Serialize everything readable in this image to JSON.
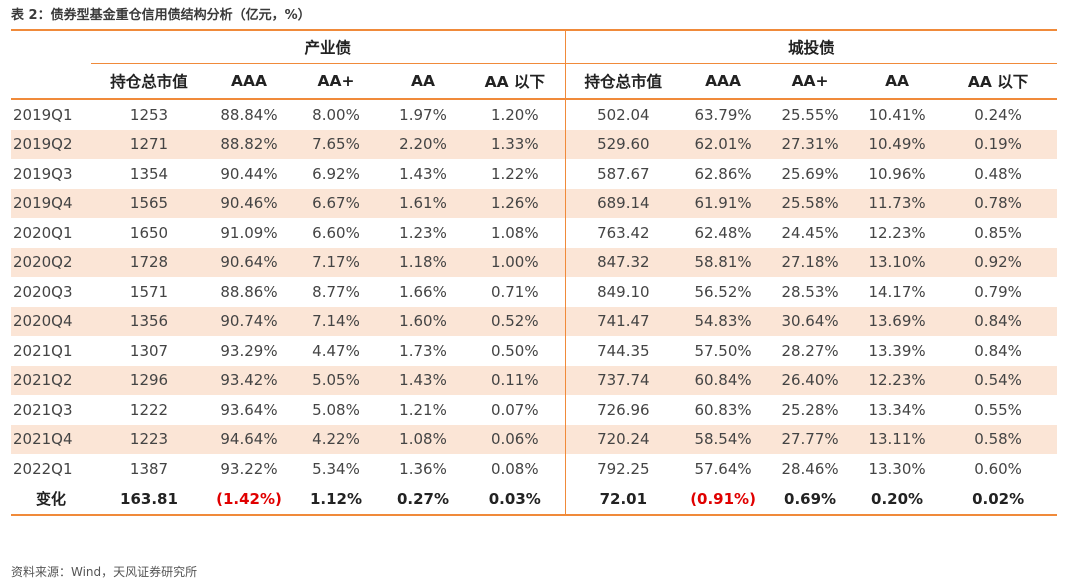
{
  "title": "表 2：债券型基金重仓信用债结构分析（亿元，%）",
  "groups": [
    "产业债",
    "城投债"
  ],
  "col_headers": [
    "持仓总市值",
    "AAA",
    "AA+",
    "AA",
    "AA 以下",
    "持仓总市值",
    "AAA",
    "AA+",
    "AA",
    "AA 以下"
  ],
  "rows": [
    {
      "label": "2019Q1",
      "vals": [
        "1253",
        "88.84%",
        "8.00%",
        "1.97%",
        "1.20%",
        "502.04",
        "63.79%",
        "25.55%",
        "10.41%",
        "0.24%"
      ]
    },
    {
      "label": "2019Q2",
      "vals": [
        "1271",
        "88.82%",
        "7.65%",
        "2.20%",
        "1.33%",
        "529.60",
        "62.01%",
        "27.31%",
        "10.49%",
        "0.19%"
      ]
    },
    {
      "label": "2019Q3",
      "vals": [
        "1354",
        "90.44%",
        "6.92%",
        "1.43%",
        "1.22%",
        "587.67",
        "62.86%",
        "25.69%",
        "10.96%",
        "0.48%"
      ]
    },
    {
      "label": "2019Q4",
      "vals": [
        "1565",
        "90.46%",
        "6.67%",
        "1.61%",
        "1.26%",
        "689.14",
        "61.91%",
        "25.58%",
        "11.73%",
        "0.78%"
      ]
    },
    {
      "label": "2020Q1",
      "vals": [
        "1650",
        "91.09%",
        "6.60%",
        "1.23%",
        "1.08%",
        "763.42",
        "62.48%",
        "24.45%",
        "12.23%",
        "0.85%"
      ]
    },
    {
      "label": "2020Q2",
      "vals": [
        "1728",
        "90.64%",
        "7.17%",
        "1.18%",
        "1.00%",
        "847.32",
        "58.81%",
        "27.18%",
        "13.10%",
        "0.92%"
      ]
    },
    {
      "label": "2020Q3",
      "vals": [
        "1571",
        "88.86%",
        "8.77%",
        "1.66%",
        "0.71%",
        "849.10",
        "56.52%",
        "28.53%",
        "14.17%",
        "0.79%"
      ]
    },
    {
      "label": "2020Q4",
      "vals": [
        "1356",
        "90.74%",
        "7.14%",
        "1.60%",
        "0.52%",
        "741.47",
        "54.83%",
        "30.64%",
        "13.69%",
        "0.84%"
      ]
    },
    {
      "label": "2021Q1",
      "vals": [
        "1307",
        "93.29%",
        "4.47%",
        "1.73%",
        "0.50%",
        "744.35",
        "57.50%",
        "28.27%",
        "13.39%",
        "0.84%"
      ]
    },
    {
      "label": "2021Q2",
      "vals": [
        "1296",
        "93.42%",
        "5.05%",
        "1.43%",
        "0.11%",
        "737.74",
        "60.84%",
        "26.40%",
        "12.23%",
        "0.54%"
      ]
    },
    {
      "label": "2021Q3",
      "vals": [
        "1222",
        "93.64%",
        "5.08%",
        "1.21%",
        "0.07%",
        "726.96",
        "60.83%",
        "25.28%",
        "13.34%",
        "0.55%"
      ]
    },
    {
      "label": "2021Q4",
      "vals": [
        "1223",
        "94.64%",
        "4.22%",
        "1.08%",
        "0.06%",
        "720.24",
        "58.54%",
        "27.77%",
        "13.11%",
        "0.58%"
      ]
    },
    {
      "label": "2022Q1",
      "vals": [
        "1387",
        "93.22%",
        "5.34%",
        "1.36%",
        "0.08%",
        "792.25",
        "57.64%",
        "28.46%",
        "13.30%",
        "0.60%"
      ]
    }
  ],
  "change_row": {
    "label": "变化",
    "vals": [
      "163.81",
      "(1.42%)",
      "1.12%",
      "0.27%",
      "0.03%",
      "72.01",
      "(0.91%)",
      "0.69%",
      "0.20%",
      "0.02%"
    ]
  },
  "negative_color": "#e00000",
  "accent_color": "#f08a3a",
  "stripe_color": "#fbe5d6",
  "source": "资料来源：Wind，天风证券研究所"
}
